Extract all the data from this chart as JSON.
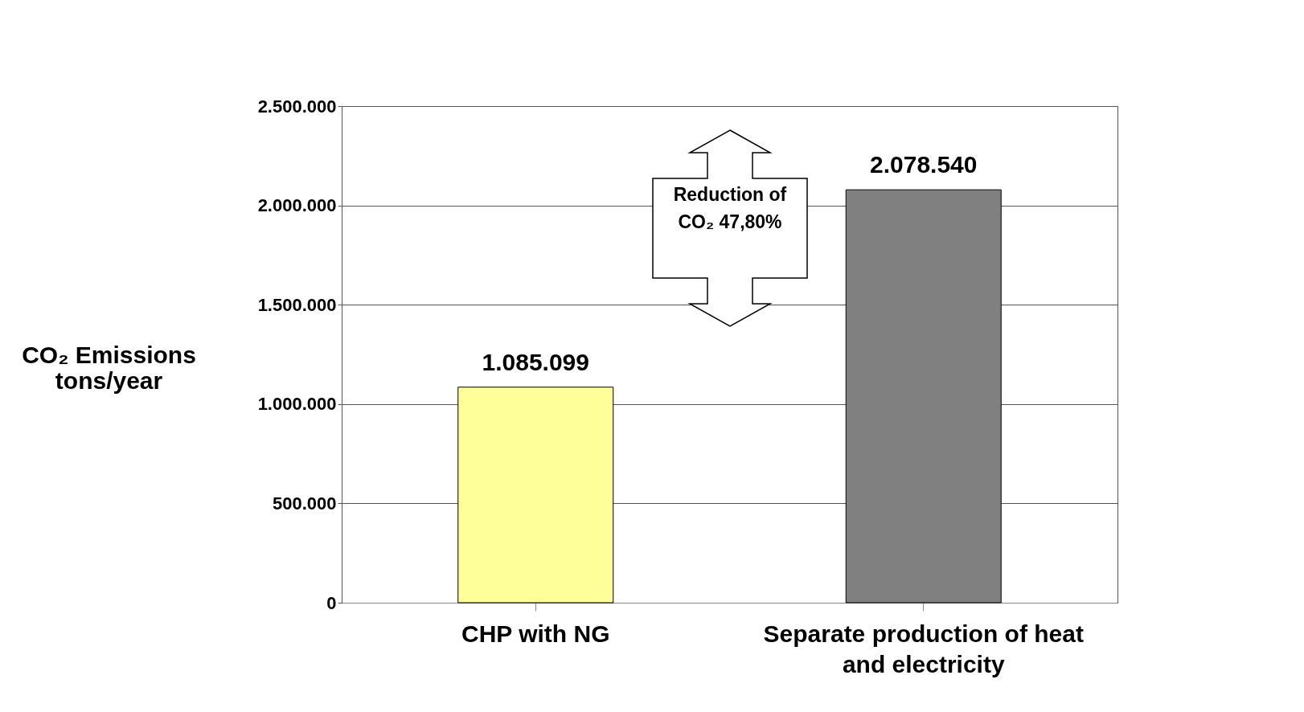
{
  "chart_data": {
    "type": "bar",
    "ylabel": "CO₂ Emissions tons/year",
    "categories": [
      "CHP with NG",
      "Separate production of heat and electricity"
    ],
    "values": [
      1085099,
      2078540
    ],
    "colors": [
      "#ffff99",
      "#808080"
    ],
    "value_labels": [
      "1.085.099",
      "2.078.540"
    ],
    "ylim": [
      0,
      2500000
    ],
    "yticks": [
      {
        "value": 0,
        "label": "0"
      },
      {
        "value": 500000,
        "label": "500.000"
      },
      {
        "value": 1000000,
        "label": "1.000.000"
      },
      {
        "value": 1500000,
        "label": "1.500.000"
      },
      {
        "value": 2000000,
        "label": "2.000.000"
      },
      {
        "value": 2500000,
        "label": "2.500.000"
      }
    ],
    "grid": "y",
    "legend": false,
    "annotations": [
      "Reduction of CO₂ 47,80%"
    ]
  }
}
